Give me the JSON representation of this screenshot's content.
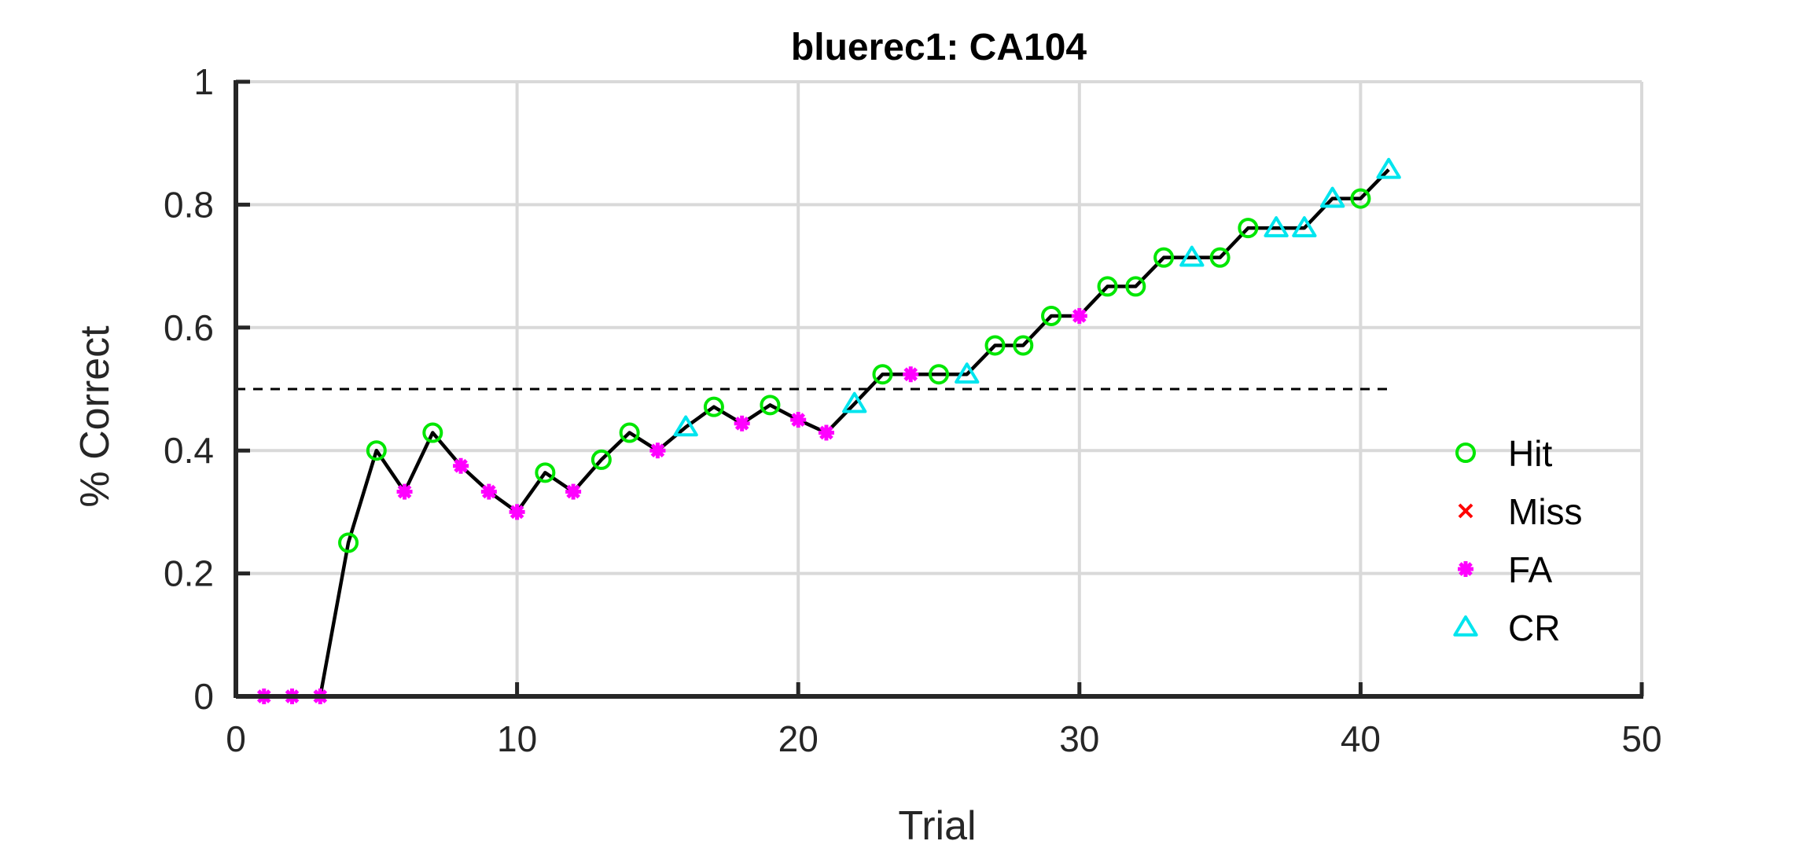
{
  "chart_data": {
    "type": "line",
    "title": "bluerec1: CA104",
    "xlabel": "Trial",
    "ylabel": "% Correct",
    "xlim": [
      0,
      50
    ],
    "ylim": [
      0,
      1
    ],
    "xticks": [
      0,
      10,
      20,
      30,
      40,
      50
    ],
    "yticks": [
      0,
      0.2,
      0.4,
      0.6,
      0.8,
      1
    ],
    "xtick_labels": [
      "0",
      "10",
      "20",
      "30",
      "40",
      "50"
    ],
    "ytick_labels": [
      "0",
      "0.2",
      "0.4",
      "0.6",
      "0.8",
      "1"
    ],
    "grid": true,
    "legend_position": "right",
    "reference_line": {
      "y": 0.5,
      "x_range": [
        0,
        41
      ],
      "style": "dashed"
    },
    "colors": {
      "Hit": "#00e600",
      "Miss": "#ff0000",
      "FA": "#ff00ff",
      "CR": "#00e5ee",
      "line": "#000000"
    },
    "legend": [
      "Hit",
      "Miss",
      "FA",
      "CR"
    ],
    "points": [
      {
        "trial": 1,
        "value": 0.0,
        "type": "FA"
      },
      {
        "trial": 2,
        "value": 0.0,
        "type": "FA"
      },
      {
        "trial": 3,
        "value": 0.0,
        "type": "FA"
      },
      {
        "trial": 4,
        "value": 0.25,
        "type": "Hit"
      },
      {
        "trial": 5,
        "value": 0.4,
        "type": "Hit"
      },
      {
        "trial": 6,
        "value": 0.333,
        "type": "FA"
      },
      {
        "trial": 7,
        "value": 0.429,
        "type": "Hit"
      },
      {
        "trial": 8,
        "value": 0.375,
        "type": "FA"
      },
      {
        "trial": 9,
        "value": 0.333,
        "type": "FA"
      },
      {
        "trial": 10,
        "value": 0.3,
        "type": "FA"
      },
      {
        "trial": 11,
        "value": 0.364,
        "type": "Hit"
      },
      {
        "trial": 12,
        "value": 0.333,
        "type": "FA"
      },
      {
        "trial": 13,
        "value": 0.385,
        "type": "Hit"
      },
      {
        "trial": 14,
        "value": 0.429,
        "type": "Hit"
      },
      {
        "trial": 15,
        "value": 0.4,
        "type": "FA"
      },
      {
        "trial": 16,
        "value": 0.438,
        "type": "CR"
      },
      {
        "trial": 17,
        "value": 0.471,
        "type": "Hit"
      },
      {
        "trial": 18,
        "value": 0.444,
        "type": "FA"
      },
      {
        "trial": 19,
        "value": 0.474,
        "type": "Hit"
      },
      {
        "trial": 20,
        "value": 0.45,
        "type": "FA"
      },
      {
        "trial": 21,
        "value": 0.429,
        "type": "FA"
      },
      {
        "trial": 22,
        "value": 0.476,
        "type": "CR"
      },
      {
        "trial": 23,
        "value": 0.524,
        "type": "Hit"
      },
      {
        "trial": 24,
        "value": 0.524,
        "type": "FA"
      },
      {
        "trial": 25,
        "value": 0.524,
        "type": "Hit"
      },
      {
        "trial": 26,
        "value": 0.524,
        "type": "CR"
      },
      {
        "trial": 27,
        "value": 0.571,
        "type": "Hit"
      },
      {
        "trial": 28,
        "value": 0.571,
        "type": "Hit"
      },
      {
        "trial": 29,
        "value": 0.619,
        "type": "Hit"
      },
      {
        "trial": 30,
        "value": 0.619,
        "type": "FA"
      },
      {
        "trial": 31,
        "value": 0.667,
        "type": "Hit"
      },
      {
        "trial": 32,
        "value": 0.667,
        "type": "Hit"
      },
      {
        "trial": 33,
        "value": 0.714,
        "type": "Hit"
      },
      {
        "trial": 34,
        "value": 0.714,
        "type": "CR"
      },
      {
        "trial": 35,
        "value": 0.714,
        "type": "Hit"
      },
      {
        "trial": 36,
        "value": 0.762,
        "type": "Hit"
      },
      {
        "trial": 37,
        "value": 0.762,
        "type": "CR"
      },
      {
        "trial": 38,
        "value": 0.762,
        "type": "CR"
      },
      {
        "trial": 39,
        "value": 0.81,
        "type": "CR"
      },
      {
        "trial": 40,
        "value": 0.81,
        "type": "Hit"
      },
      {
        "trial": 41,
        "value": 0.857,
        "type": "CR"
      }
    ]
  }
}
